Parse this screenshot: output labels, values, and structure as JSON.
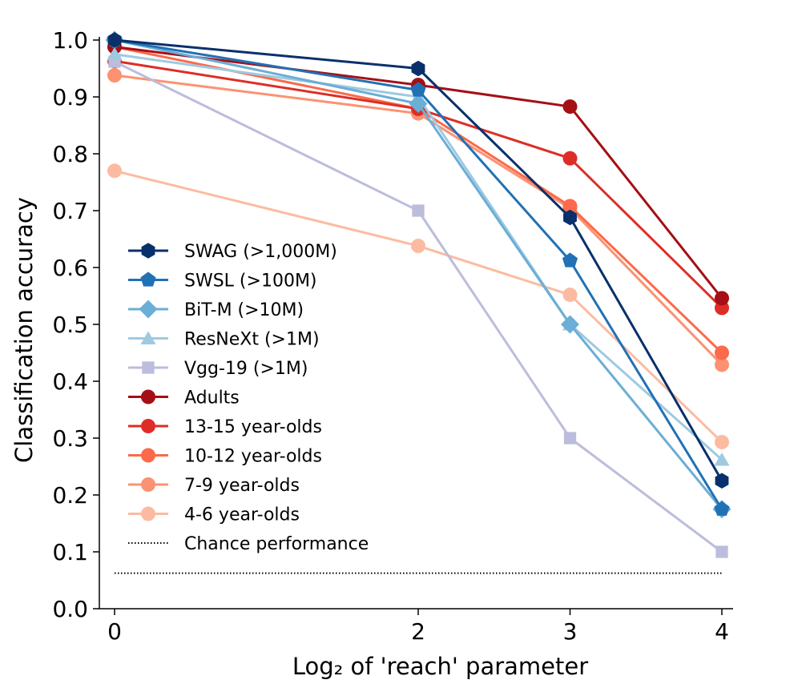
{
  "chart_data": {
    "type": "line",
    "title": "",
    "xlabel": "Log₂ of 'reach' parameter",
    "ylabel": "Classification accuracy",
    "x": [
      0,
      2,
      3,
      4
    ],
    "x_ticks": [
      "0",
      "2",
      "3",
      "4"
    ],
    "xlim": [
      -0.1,
      4.1
    ],
    "ylim": [
      0.0,
      1.0
    ],
    "y_ticks": [
      "0.0",
      "0.1",
      "0.2",
      "0.3",
      "0.4",
      "0.5",
      "0.6",
      "0.7",
      "0.8",
      "0.9",
      "1.0"
    ],
    "grid": false,
    "legend_position": "left",
    "series": [
      {
        "name": "SWAG (>1,000M)",
        "values": [
          1.0,
          0.95,
          0.688,
          0.225
        ],
        "color": "#08306b",
        "marker": "hexagon"
      },
      {
        "name": "SWSL (>100M)",
        "values": [
          1.0,
          0.912,
          0.612,
          0.175
        ],
        "color": "#2171b5",
        "marker": "pentagon"
      },
      {
        "name": "BiT-M (>10M)",
        "values": [
          1.0,
          0.888,
          0.5,
          0.175
        ],
        "color": "#6baed6",
        "marker": "diamond"
      },
      {
        "name": "ResNeXt (>1M)",
        "values": [
          0.975,
          0.9,
          0.5,
          0.262
        ],
        "color": "#9ecae1",
        "marker": "triangle"
      },
      {
        "name": "Vgg-19 (>1M)",
        "values": [
          0.962,
          0.7,
          0.3,
          0.1
        ],
        "color": "#bcbddc",
        "marker": "square"
      },
      {
        "name": "Adults",
        "values": [
          0.988,
          0.921,
          0.883,
          0.546
        ],
        "color": "#a50f15",
        "marker": "circle"
      },
      {
        "name": "13-15 year-olds",
        "values": [
          0.963,
          0.879,
          0.792,
          0.529
        ],
        "color": "#de2d26",
        "marker": "circle"
      },
      {
        "name": "10-12 year-olds",
        "values": [
          0.988,
          0.879,
          0.708,
          0.45
        ],
        "color": "#fb6a4a",
        "marker": "circle"
      },
      {
        "name": "7-9 year-olds",
        "values": [
          0.938,
          0.871,
          0.704,
          0.429
        ],
        "color": "#fc9272",
        "marker": "circle"
      },
      {
        "name": "4-6 year-olds",
        "values": [
          0.77,
          0.638,
          0.552,
          0.293
        ],
        "color": "#fcbba1",
        "marker": "circle"
      }
    ],
    "plot_order": [
      9,
      8,
      7,
      6,
      5,
      4,
      3,
      2,
      1,
      0
    ],
    "chance": {
      "name": "Chance performance",
      "value": 0.0625,
      "color": "#000000",
      "style": "dotted"
    }
  }
}
